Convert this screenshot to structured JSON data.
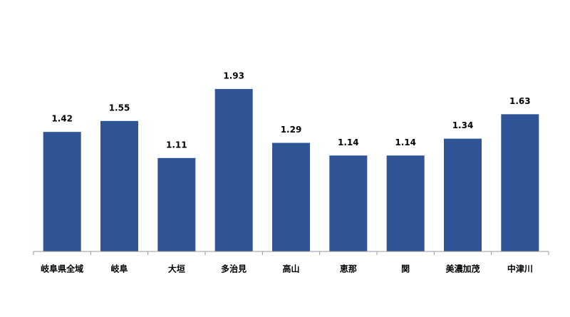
{
  "chart_data": {
    "type": "bar",
    "categories": [
      "岐阜県全域",
      "岐阜",
      "大垣",
      "多治見",
      "高山",
      "恵那",
      "関",
      "美濃加茂",
      "中津川"
    ],
    "values": [
      1.42,
      1.55,
      1.11,
      1.93,
      1.29,
      1.14,
      1.14,
      1.34,
      1.63
    ],
    "color": "#2f5597",
    "ylim": [
      0,
      2.2
    ]
  }
}
